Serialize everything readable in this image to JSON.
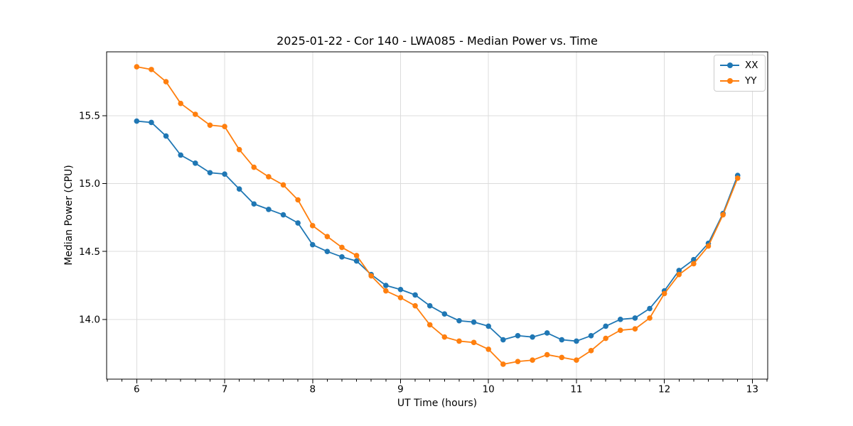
{
  "chart_data": {
    "type": "line",
    "title": "2025-01-22 - Cor 140 - LWA085 - Median Power vs. Time",
    "xlabel": "UT Time (hours)",
    "ylabel": "Median Power (CPU)",
    "xlim": [
      5.658,
      13.175
    ],
    "ylim": [
      13.56,
      15.97
    ],
    "xticks": [
      6,
      7,
      8,
      9,
      10,
      11,
      12,
      13
    ],
    "yticks": [
      14.0,
      14.5,
      15.0,
      15.5
    ],
    "x_minor_tick_step": 0.166667,
    "grid": true,
    "legend_position": "upper right",
    "x": [
      6.0,
      6.1667,
      6.3333,
      6.5,
      6.6667,
      6.8333,
      7.0,
      7.1667,
      7.3333,
      7.5,
      7.6667,
      7.8333,
      8.0,
      8.1667,
      8.3333,
      8.5,
      8.6667,
      8.8333,
      9.0,
      9.1667,
      9.3333,
      9.5,
      9.6667,
      9.8333,
      10.0,
      10.1667,
      10.3333,
      10.5,
      10.6667,
      10.8333,
      11.0,
      11.1667,
      11.3333,
      11.5,
      11.6667,
      11.8333,
      12.0,
      12.1667,
      12.3333,
      12.5,
      12.6667,
      12.8333
    ],
    "series": [
      {
        "name": "XX",
        "color": "#1f77b4",
        "values": [
          15.46,
          15.45,
          15.35,
          15.21,
          15.15,
          15.08,
          15.07,
          14.96,
          14.85,
          14.81,
          14.77,
          14.71,
          14.55,
          14.5,
          14.46,
          14.43,
          14.33,
          14.25,
          14.22,
          14.18,
          14.1,
          14.04,
          13.99,
          13.98,
          13.95,
          13.85,
          13.88,
          13.87,
          13.9,
          13.85,
          13.84,
          13.88,
          13.95,
          14.0,
          14.01,
          14.08,
          14.21,
          14.36,
          14.44,
          14.56,
          14.78,
          15.06
        ]
      },
      {
        "name": "YY",
        "color": "#ff7f0e",
        "values": [
          15.86,
          15.84,
          15.75,
          15.59,
          15.51,
          15.43,
          15.42,
          15.25,
          15.12,
          15.05,
          14.99,
          14.88,
          14.69,
          14.61,
          14.53,
          14.47,
          14.32,
          14.21,
          14.16,
          14.1,
          13.96,
          13.87,
          13.84,
          13.83,
          13.78,
          13.67,
          13.69,
          13.7,
          13.74,
          13.72,
          13.7,
          13.77,
          13.86,
          13.92,
          13.93,
          14.01,
          14.19,
          14.33,
          14.41,
          14.54,
          14.77,
          15.04
        ]
      }
    ]
  }
}
